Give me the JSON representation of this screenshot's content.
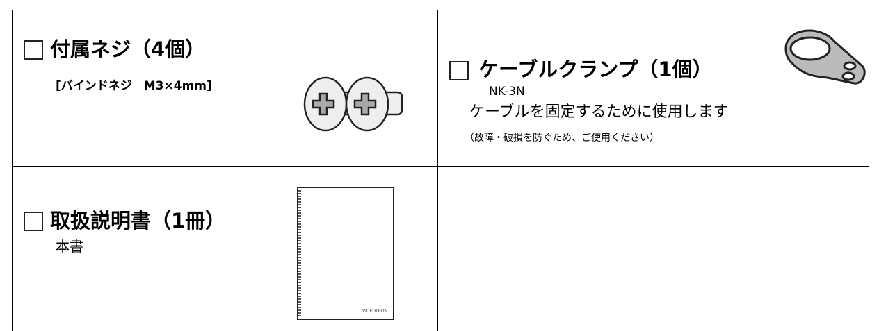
{
  "items": [
    {
      "title": "付属ネジ（4個）",
      "subtitle": "[バインドネジ　M3×4mm]"
    },
    {
      "title": "ケーブルクランプ（1個）",
      "model": "NK-3N",
      "description": "ケーブルを固定するために使用します",
      "note": "（故障・破損を防ぐため、ご使用ください）"
    },
    {
      "title": "取扱説明書（1冊）",
      "subtitle": "本書",
      "image_label": "VIDEOTRON."
    }
  ]
}
